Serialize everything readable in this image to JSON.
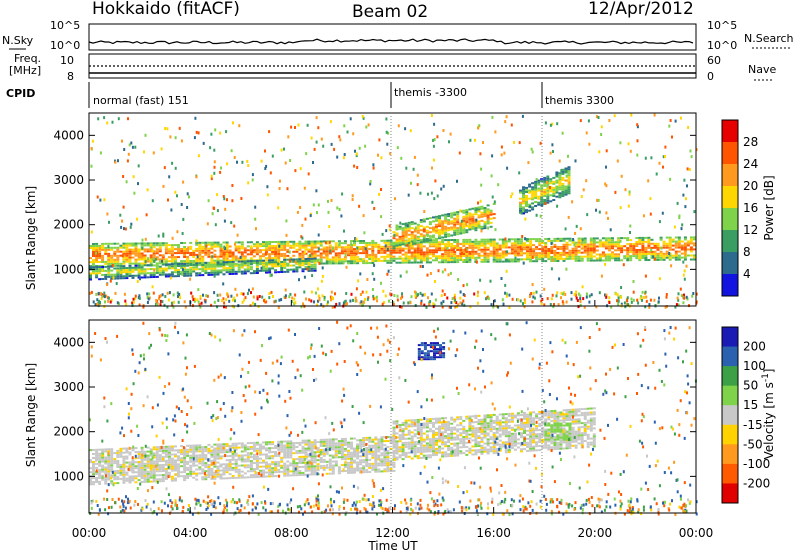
{
  "header": {
    "radar": "Hokkaido (fitACF)",
    "beam": "Beam 02",
    "date": "12/Apr/2012"
  },
  "top_panels": {
    "nsky_label": "N.Sky",
    "nsky_ticks": [
      "10^5",
      "10^0"
    ],
    "nsearch_label": "N.Search",
    "freq_label_1": "Freq.",
    "freq_label_2": "[MHz]",
    "freq_ticks": [
      "10",
      "8"
    ],
    "nave_ticks": [
      "60",
      "0"
    ],
    "nave_label": "Nave",
    "cpid_label": "CPID",
    "cpid_segments": [
      "normal (fast) 151",
      "themis -3300",
      "themis 3300"
    ]
  },
  "axes": {
    "ylabel": "Slant Range [km]",
    "xlabel": "Time UT",
    "yticks": [
      "4000",
      "3000",
      "2000",
      "1000"
    ],
    "xticks": [
      "00:00",
      "04:00",
      "08:00",
      "12:00",
      "16:00",
      "20:00",
      "00:00"
    ]
  },
  "power_colorbar": {
    "label": "Power [dB]",
    "ticks": [
      "28",
      "24",
      "20",
      "16",
      "12",
      "8",
      "4"
    ],
    "colors": [
      "#e60000",
      "#ff5500",
      "#ff9a1e",
      "#ffd700",
      "#7fd34a",
      "#3a9e62",
      "#2c6a8e",
      "#1414e0"
    ]
  },
  "velocity_colorbar": {
    "label": "Velocity [m s^-1]",
    "ticks": [
      "200",
      "100",
      "50",
      "15",
      "-15",
      "-50",
      "-100",
      "-200"
    ],
    "colors": [
      "#1a1ab4",
      "#2a62b0",
      "#3ca046",
      "#7fd34a",
      "#c8c8c8",
      "#ffd200",
      "#ff9a1e",
      "#ff5a00",
      "#e00000"
    ]
  },
  "chart_data": [
    {
      "type": "heatmap",
      "title": "Power",
      "xlabel": "Time UT",
      "ylabel": "Slant Range [km]",
      "xlim": [
        0,
        24
      ],
      "ylim": [
        180,
        4500
      ],
      "color_label": "Power [dB]",
      "color_range": [
        0,
        32
      ],
      "bands": [
        {
          "t": [
            0,
            24
          ],
          "range_center": [
            1300,
            1450
          ],
          "width_km": 500,
          "value_db": 26
        },
        {
          "t": [
            0,
            9
          ],
          "range_center": [
            900,
            1100
          ],
          "width_km": 300,
          "value_db": 18
        },
        {
          "t": [
            12,
            16
          ],
          "range_center": [
            1700,
            2200
          ],
          "width_km": 500,
          "value_db": 24
        },
        {
          "t": [
            17,
            19
          ],
          "range_center": [
            2500,
            3000
          ],
          "width_km": 600,
          "value_db": 20
        }
      ]
    },
    {
      "type": "heatmap",
      "title": "Velocity",
      "xlabel": "Time UT",
      "ylabel": "Slant Range [km]",
      "xlim": [
        0,
        24
      ],
      "ylim": [
        180,
        4500
      ],
      "color_label": "Velocity [m s^-1]",
      "color_range": [
        -200,
        200
      ],
      "bands": [
        {
          "t": [
            0,
            12
          ],
          "range_center": [
            1200,
            1500
          ],
          "width_km": 800,
          "value_ms": 0
        },
        {
          "t": [
            12,
            20
          ],
          "range_center": [
            1800,
            2100
          ],
          "width_km": 900,
          "value_ms": 0
        },
        {
          "t": [
            13,
            14
          ],
          "range_center": [
            3800,
            3800
          ],
          "width_km": 400,
          "value_ms": 200
        },
        {
          "t": [
            18,
            19
          ],
          "range_center": [
            2000,
            2000
          ],
          "width_km": 400,
          "value_ms": 30
        }
      ]
    }
  ]
}
